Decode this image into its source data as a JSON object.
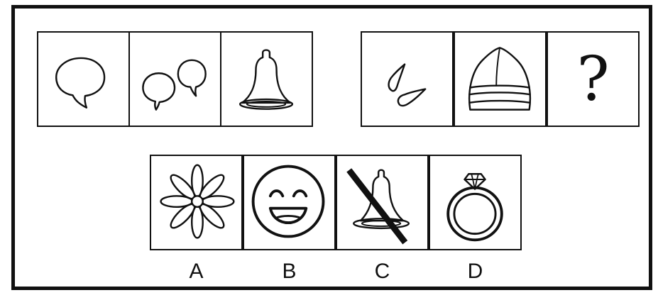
{
  "puzzle": {
    "question_mark": "?",
    "options": [
      {
        "label": "A",
        "icon": "flower-icon"
      },
      {
        "label": "B",
        "icon": "smiling-face-icon"
      },
      {
        "label": "C",
        "icon": "crossed-out-bell-icon"
      },
      {
        "label": "D",
        "icon": "diamond-ring-icon"
      }
    ],
    "first_group": [
      "speech-bubble-icon",
      "two-speech-bubbles-icon",
      "bell-icon"
    ],
    "second_group": [
      "two-drops-icon",
      "knit-hat-icon",
      "question-mark"
    ]
  }
}
